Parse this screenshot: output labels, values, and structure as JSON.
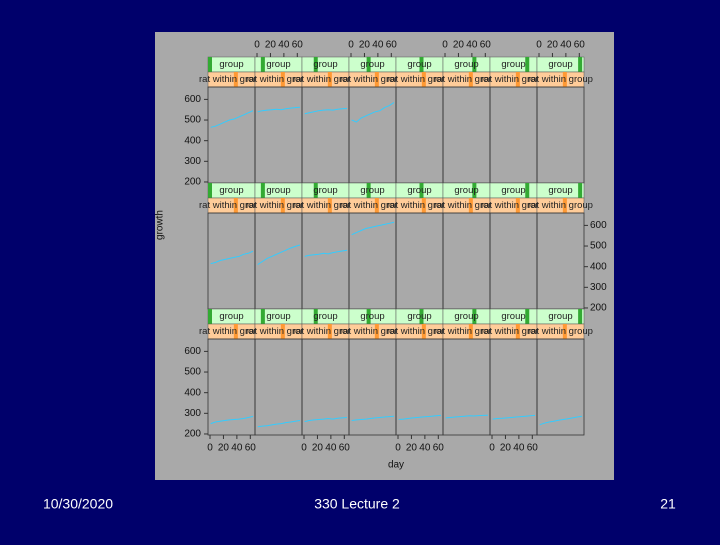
{
  "chart_data": {
    "type": "lattice",
    "xlabel": "day",
    "ylabel": "growth",
    "strip_labels": [
      "group",
      "rat within group"
    ],
    "x": [
      1,
      8,
      15,
      22,
      29,
      36,
      43,
      50,
      57,
      64
    ],
    "xlim": [
      -3,
      67
    ],
    "xticks": [
      0,
      20,
      40,
      60
    ],
    "ylim": [
      195,
      660
    ],
    "yticks": [
      200,
      300,
      400,
      500,
      600
    ],
    "color": "#33ccff",
    "rows": [
      {
        "panels": [
          {
            "values": [
              465,
              470,
              480,
              490,
              500,
              505,
              515,
              525,
              535,
              545
            ]
          },
          {
            "values": [
              540,
              545,
              548,
              550,
              552,
              550,
              555,
              558,
              560,
              562
            ]
          },
          {
            "values": [
              530,
              535,
              540,
              545,
              548,
              550,
              548,
              552,
              555,
              556
            ]
          },
          {
            "values": [
              500,
              490,
              510,
              520,
              530,
              540,
              545,
              560,
              570,
              585
            ]
          },
          {
            "values": []
          },
          {
            "values": []
          },
          {
            "values": []
          },
          {
            "values": []
          }
        ]
      },
      {
        "panels": [
          {
            "values": [
              415,
              420,
              430,
              435,
              440,
              445,
              450,
              460,
              465,
              475
            ]
          },
          {
            "values": [
              410,
              425,
              440,
              450,
              460,
              470,
              480,
              490,
              498,
              505
            ]
          },
          {
            "values": [
              450,
              455,
              458,
              460,
              465,
              462,
              468,
              472,
              476,
              480
            ]
          },
          {
            "values": [
              555,
              565,
              575,
              585,
              590,
              595,
              600,
              605,
              610,
              615
            ]
          },
          {
            "values": []
          },
          {
            "values": []
          },
          {
            "values": []
          },
          {
            "values": []
          }
        ]
      },
      {
        "panels": [
          {
            "values": [
              250,
              258,
              262,
              265,
              268,
              270,
              272,
              275,
              280,
              285
            ]
          },
          {
            "values": [
              235,
              238,
              240,
              244,
              248,
              250,
              255,
              258,
              262,
              265
            ]
          },
          {
            "values": [
              260,
              265,
              268,
              270,
              272,
              275,
              272,
              276,
              278,
              280
            ]
          },
          {
            "values": [
              265,
              268,
              270,
              272,
              275,
              278,
              280,
              282,
              284,
              286
            ]
          },
          {
            "values": [
              270,
              272,
              275,
              278,
              280,
              282,
              284,
              286,
              288,
              290
            ]
          },
          {
            "values": [
              278,
              280,
              282,
              284,
              286,
              288,
              287,
              289,
              290,
              291
            ]
          },
          {
            "values": [
              272,
              275,
              276,
              278,
              280,
              282,
              284,
              286,
              288,
              290
            ]
          },
          {
            "values": [
              245,
              252,
              258,
              262,
              266,
              270,
              274,
              278,
              282,
              286
            ]
          }
        ]
      }
    ]
  },
  "footer": {
    "date": "10/30/2020",
    "title": "330 Lecture 2",
    "page": "21"
  }
}
